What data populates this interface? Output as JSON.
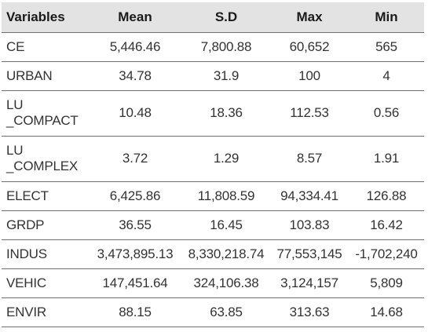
{
  "table": {
    "headers": [
      "Variables",
      "Mean",
      "S.D",
      "Max",
      "Min"
    ],
    "rows": [
      {
        "variable": [
          "CE"
        ],
        "mean": "5,446.46",
        "sd": "7,800.88",
        "max": "60,652",
        "min": "565"
      },
      {
        "variable": [
          "URBAN"
        ],
        "mean": "34.78",
        "sd": "31.9",
        "max": "100",
        "min": "4"
      },
      {
        "variable": [
          "LU",
          "_COMPACT"
        ],
        "mean": "10.48",
        "sd": "18.36",
        "max": "112.53",
        "min": "0.56"
      },
      {
        "variable": [
          "LU",
          "_COMPLEX"
        ],
        "mean": "3.72",
        "sd": "1.29",
        "max": "8.57",
        "min": "1.91"
      },
      {
        "variable": [
          "ELECT"
        ],
        "mean": "6,425.86",
        "sd": "11,808.59",
        "max": "94,334.41",
        "min": "126.88"
      },
      {
        "variable": [
          "GRDP"
        ],
        "mean": "36.55",
        "sd": "16.45",
        "max": "103.83",
        "min": "16.42"
      },
      {
        "variable": [
          "INDUS"
        ],
        "mean": "3,473,895.13",
        "sd": "8,330,218.74",
        "max": "77,553,145",
        "min": "-1,702,240"
      },
      {
        "variable": [
          "VEHIC"
        ],
        "mean": "147,451.64",
        "sd": "324,106.38",
        "max": "3,124,157",
        "min": "5,809"
      },
      {
        "variable": [
          "ENVIR"
        ],
        "mean": "88.15",
        "sd": "63.85",
        "max": "313.63",
        "min": "14.68"
      }
    ]
  }
}
